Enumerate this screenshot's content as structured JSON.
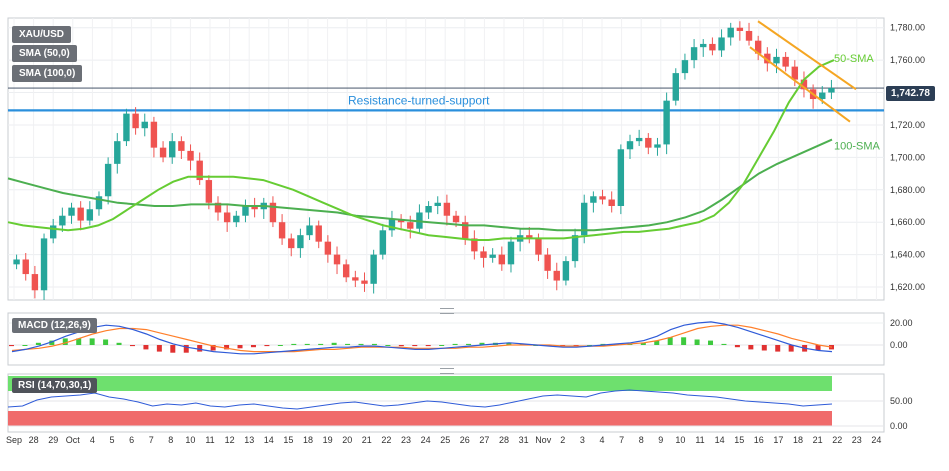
{
  "legend": {
    "symbol": "XAU/USD",
    "sma50": "SMA (50,0)",
    "sma100": "SMA (100,0)"
  },
  "annotations": {
    "resistance": "Resistance-turned-support",
    "sma50": "50-SMA",
    "sma100": "100-SMA"
  },
  "last_price": "1,742.78",
  "macd": {
    "label": "MACD (12,26,9)"
  },
  "rsi": {
    "label": "RSI (14,70,30,1)"
  },
  "colors": {
    "up": "#26a69a",
    "down": "#ef5350",
    "sma50": "#66cc33",
    "sma100": "#4caf50",
    "resistance": "#2a8fdc",
    "channel": "#f5a623",
    "macd_line": "#2f5bd8",
    "signal_line": "#ff7f2a",
    "rsi_line": "#2f5bd8",
    "rsi_overbought": "#6ee06e",
    "rsi_oversold": "#f06b6b"
  },
  "chart_data": {
    "type": "candlestick",
    "price_axis": {
      "ticks": [
        "1,780.00",
        "1,760.00",
        "1,740.00",
        "1,720.00",
        "1,700.00",
        "1,680.00",
        "1,660.00",
        "1,640.00",
        "1,620.00"
      ],
      "ylim": [
        1612,
        1786
      ]
    },
    "macd_axis": {
      "ticks": [
        "20.00",
        "0.00"
      ]
    },
    "rsi_axis": {
      "ticks": [
        "50.00",
        "0.00"
      ]
    },
    "x_ticks": [
      "Sep",
      "28",
      "29",
      "Oct",
      "4",
      "5",
      "6",
      "7",
      "8",
      "10",
      "11",
      "12",
      "13",
      "14",
      "15",
      "18",
      "19",
      "20",
      "21",
      "22",
      "23",
      "24",
      "25",
      "26",
      "27",
      "28",
      "31",
      "Nov",
      "2",
      "3",
      "4",
      "7",
      "8",
      "9",
      "10",
      "11",
      "14",
      "15",
      "16",
      "17",
      "18",
      "21",
      "22",
      "23",
      "24"
    ],
    "resistance_level": 1729,
    "series": [
      {
        "name": "50-SMA",
        "values_note": "line"
      },
      {
        "name": "100-SMA",
        "values_note": "line"
      }
    ],
    "close_series": [
      1637,
      1628,
      1618,
      1650,
      1658,
      1664,
      1669,
      1661,
      1668,
      1676,
      1696,
      1710,
      1727,
      1718,
      1722,
      1706,
      1700,
      1710,
      1704,
      1698,
      1686,
      1672,
      1666,
      1660,
      1664,
      1670,
      1668,
      1672,
      1660,
      1650,
      1644,
      1652,
      1658,
      1648,
      1640,
      1634,
      1626,
      1624,
      1622,
      1640,
      1655,
      1662,
      1660,
      1656,
      1666,
      1670,
      1672,
      1664,
      1660,
      1650,
      1642,
      1638,
      1640,
      1634,
      1648,
      1652,
      1650,
      1640,
      1630,
      1624,
      1636,
      1652,
      1672,
      1676,
      1674,
      1670,
      1705,
      1710,
      1712,
      1706,
      1708,
      1735,
      1752,
      1760,
      1768,
      1770,
      1766,
      1774,
      1780,
      1778,
      1772,
      1764,
      1758,
      1762,
      1756,
      1748,
      1742,
      1736,
      1740,
      1742.78
    ],
    "sma50": [
      1660,
      1658,
      1657,
      1656,
      1655,
      1656,
      1658,
      1662,
      1668,
      1674,
      1680,
      1685,
      1688,
      1688,
      1688,
      1688,
      1687,
      1686,
      1683,
      1680,
      1676,
      1672,
      1668,
      1664,
      1661,
      1658,
      1656,
      1654,
      1652,
      1651,
      1650,
      1649,
      1649,
      1650,
      1650,
      1650,
      1650,
      1650,
      1651,
      1652,
      1653,
      1654,
      1654,
      1655,
      1656,
      1658,
      1660,
      1664,
      1672,
      1684,
      1700,
      1716,
      1734,
      1748,
      1756,
      1760
    ],
    "sma100": [
      1687,
      1684,
      1681,
      1678,
      1676,
      1674,
      1672,
      1671,
      1670,
      1670,
      1671,
      1671,
      1671,
      1670,
      1670,
      1669,
      1668,
      1667,
      1666,
      1664,
      1663,
      1662,
      1661,
      1660,
      1659,
      1658,
      1658,
      1657,
      1656,
      1656,
      1655,
      1655,
      1655,
      1656,
      1657,
      1658,
      1660,
      1663,
      1667,
      1674,
      1682,
      1690,
      1696,
      1701,
      1706,
      1711
    ],
    "macd_line": [
      -6,
      -4,
      -1,
      3,
      8,
      12,
      16,
      18,
      17,
      14,
      10,
      5,
      1,
      -2,
      -4,
      -6,
      -7,
      -8,
      -8,
      -7,
      -6,
      -5,
      -4,
      -3,
      -2,
      -2,
      -1,
      -1,
      -2,
      -3,
      -4,
      -4,
      -3,
      -2,
      -1,
      0,
      1,
      2,
      1,
      0,
      -1,
      -2,
      -2,
      -1,
      0,
      1,
      2,
      4,
      8,
      14,
      18,
      20,
      21,
      19,
      16,
      12,
      8,
      4,
      0,
      -3,
      -5,
      -6
    ],
    "signal_line": [
      -5,
      -4,
      -3,
      -1,
      2,
      6,
      10,
      13,
      15,
      15,
      14,
      11,
      8,
      5,
      2,
      -1,
      -3,
      -5,
      -6,
      -6,
      -6,
      -6,
      -5,
      -4,
      -4,
      -3,
      -2,
      -2,
      -2,
      -2,
      -3,
      -3,
      -3,
      -3,
      -2,
      -2,
      -1,
      0,
      0,
      0,
      0,
      -1,
      -1,
      -1,
      -1,
      0,
      1,
      2,
      4,
      7,
      11,
      15,
      17,
      18,
      18,
      16,
      13,
      10,
      6,
      3,
      0,
      -2
    ],
    "rsi": [
      38,
      40,
      52,
      58,
      60,
      62,
      66,
      58,
      54,
      48,
      40,
      44,
      42,
      46,
      40,
      38,
      42,
      44,
      40,
      36,
      34,
      38,
      42,
      46,
      48,
      44,
      40,
      42,
      46,
      50,
      48,
      44,
      40,
      38,
      42,
      48,
      54,
      60,
      62,
      60,
      58,
      66,
      70,
      72,
      70,
      68,
      66,
      62,
      60,
      58,
      54,
      50,
      48,
      46,
      44,
      40,
      42,
      44
    ]
  }
}
